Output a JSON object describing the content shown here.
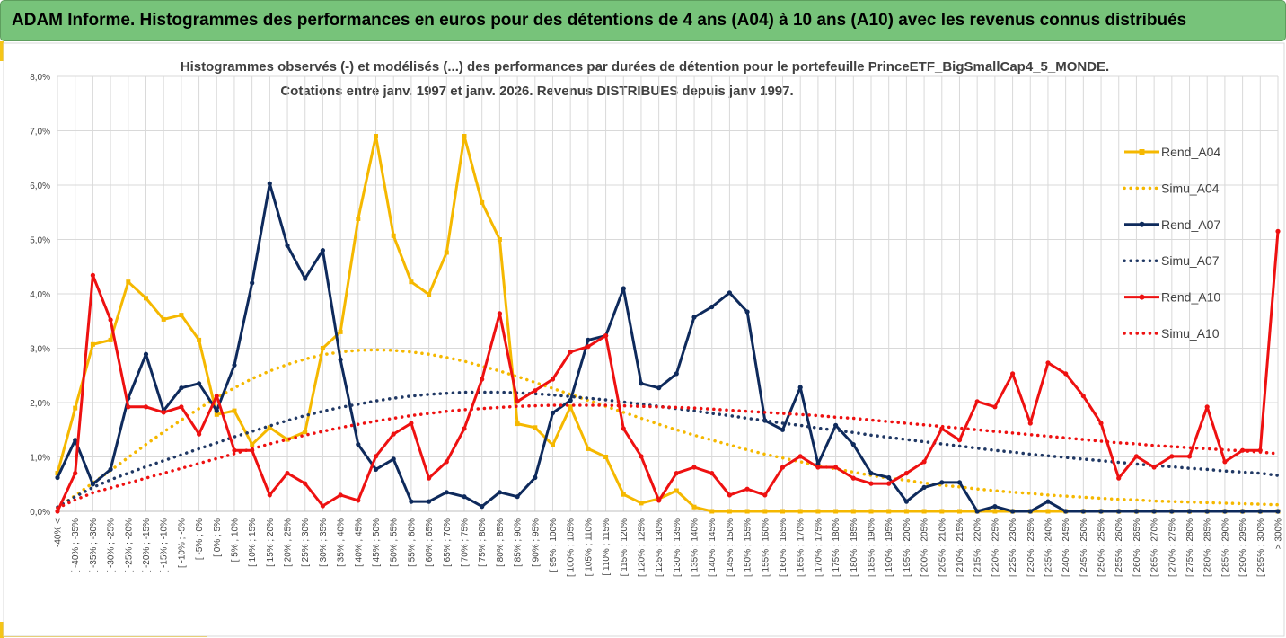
{
  "header": {
    "title": "ADAM Informe. Histogrammes des performances en euros pour des détentions de 4 ans (A04) à 10 ans (A10) avec les revenus connus distribués",
    "background": "#77c37a",
    "accent": "#f5c518"
  },
  "chart_data": {
    "type": "line",
    "title_lines": [
      "Histogrammes observés (-) et modélisés (...) des performances par durées de détention pour le portefeuille PrinceETF_BigSmallCap4_5_MONDE.",
      "Cotations entre janv. 1997 et janv. 2026. Revenus DISTRIBUES depuis janv 1997."
    ],
    "ylim": [
      0,
      8
    ],
    "yticks": [
      "0,0%",
      "1,0%",
      "2,0%",
      "3,0%",
      "4,0%",
      "5,0%",
      "6,0%",
      "7,0%",
      "8,0%"
    ],
    "grid": true,
    "legend_position": "right",
    "categories": [
      "-40% <",
      "[ -40% ; -35%",
      "[ -35% ; -30%",
      "[ -30% ; -25%",
      "[ -25% ; -20%",
      "[ -20% ; -15%",
      "[ -15% ; -10%",
      "[ -10% ; -5%",
      "[ -5% ; 0%",
      "[ 0% ; 5%",
      "[ 5% ; 10%",
      "[ 10% ; 15%",
      "[ 15% ; 20%",
      "[ 20% ; 25%",
      "[ 25% ; 30%",
      "[ 30% ; 35%",
      "[ 35% ; 40%",
      "[ 40% ; 45%",
      "[ 45% ; 50%",
      "[ 50% ; 55%",
      "[ 55% ; 60%",
      "[ 60% ; 65%",
      "[ 65% ; 70%",
      "[ 70% ; 75%",
      "[ 75% ; 80%",
      "[ 80% ; 85%",
      "[ 85% ; 90%",
      "[ 90% ; 95%",
      "[ 95% ; 100%",
      "[ 100% ; 105%",
      "[ 105% ; 110%",
      "[ 110% ; 115%",
      "[ 115% ; 120%",
      "[ 120% ; 125%",
      "[ 125% ; 130%",
      "[ 130% ; 135%",
      "[ 135% ; 140%",
      "[ 140% ; 145%",
      "[ 145% ; 150%",
      "[ 150% ; 155%",
      "[ 155% ; 160%",
      "[ 160% ; 165%",
      "[ 165% ; 170%",
      "[ 170% ; 175%",
      "[ 175% ; 180%",
      "[ 180% ; 185%",
      "[ 185% ; 190%",
      "[ 190% ; 195%",
      "[ 195% ; 200%",
      "[ 200% ; 205%",
      "[ 205% ; 210%",
      "[ 210% ; 215%",
      "[ 215% ; 220%",
      "[ 220% ; 225%",
      "[ 225% ; 230%",
      "[ 230% ; 235%",
      "[ 235% ; 240%",
      "[ 240% ; 245%",
      "[ 245% ; 250%",
      "[ 250% ; 255%",
      "[ 255% ; 260%",
      "[ 260% ; 265%",
      "[ 265% ; 270%",
      "[ 270% ; 275%",
      "[ 275% ; 280%",
      "[ 280% ; 285%",
      "[ 285% ; 290%",
      "[ 290% ; 295%",
      "[ 295% ; 300%",
      "> 300%"
    ],
    "series": [
      {
        "name": "Rend_A04",
        "color": "#f5b800",
        "style": "solid",
        "marker": "square",
        "values": [
          0.7,
          1.9,
          3.07,
          3.15,
          4.22,
          3.92,
          3.53,
          3.61,
          3.15,
          1.78,
          1.85,
          1.23,
          1.54,
          1.32,
          1.46,
          3.0,
          3.3,
          5.38,
          6.9,
          5.07,
          4.22,
          3.99,
          4.76,
          6.9,
          5.68,
          5.0,
          1.61,
          1.54,
          1.22,
          1.92,
          1.15,
          1.0,
          0.31,
          0.15,
          0.23,
          0.38,
          0.08,
          0.0,
          0.0,
          0.0,
          0.0,
          0.0,
          0.0,
          0.0,
          0.0,
          0.0,
          0.0,
          0.0,
          0.0,
          0.0,
          0.0,
          0.0,
          0.0,
          0.0,
          0.0,
          0.0,
          0.0,
          0.0,
          0.0,
          0.0,
          0.0,
          0.0,
          0.0,
          0.0,
          0.0,
          0.0,
          0.0,
          0.0,
          0.0,
          0.0
        ]
      },
      {
        "name": "Simu_A04",
        "color": "#f5b800",
        "style": "dotted",
        "marker": "none",
        "values": [
          0.07,
          0.29,
          0.52,
          0.75,
          0.99,
          1.23,
          1.46,
          1.68,
          1.89,
          2.09,
          2.27,
          2.44,
          2.58,
          2.7,
          2.8,
          2.88,
          2.93,
          2.96,
          2.97,
          2.96,
          2.93,
          2.89,
          2.83,
          2.76,
          2.67,
          2.58,
          2.48,
          2.37,
          2.26,
          2.15,
          2.04,
          1.93,
          1.82,
          1.71,
          1.6,
          1.5,
          1.4,
          1.31,
          1.22,
          1.13,
          1.05,
          0.98,
          0.91,
          0.84,
          0.78,
          0.72,
          0.66,
          0.61,
          0.57,
          0.52,
          0.48,
          0.45,
          0.41,
          0.38,
          0.35,
          0.33,
          0.3,
          0.28,
          0.26,
          0.24,
          0.22,
          0.21,
          0.19,
          0.18,
          0.17,
          0.16,
          0.15,
          0.14,
          0.13,
          0.12
        ]
      },
      {
        "name": "Rend_A07",
        "color": "#0e2a5c",
        "style": "solid",
        "marker": "circle",
        "values": [
          0.62,
          1.31,
          0.5,
          0.77,
          2.08,
          2.89,
          1.85,
          2.27,
          2.35,
          1.85,
          2.69,
          4.2,
          6.03,
          4.89,
          4.28,
          4.8,
          2.79,
          1.23,
          0.77,
          0.96,
          0.18,
          0.18,
          0.35,
          0.27,
          0.09,
          0.35,
          0.27,
          0.62,
          1.81,
          2.04,
          3.15,
          3.23,
          4.1,
          2.35,
          2.27,
          2.53,
          3.57,
          3.76,
          4.02,
          3.67,
          1.67,
          1.5,
          2.28,
          0.87,
          1.58,
          1.23,
          0.7,
          0.62,
          0.18,
          0.44,
          0.53,
          0.53,
          0.0,
          0.09,
          0.0,
          0.0,
          0.18,
          0.0,
          0.0,
          0.0,
          0.0,
          0.0,
          0.0,
          0.0,
          0.0,
          0.0,
          0.0,
          0.0,
          0.0,
          0.0
        ]
      },
      {
        "name": "Simu_A07",
        "color": "#203864",
        "style": "dotted",
        "marker": "none",
        "values": [
          0.08,
          0.27,
          0.44,
          0.58,
          0.7,
          0.82,
          0.93,
          1.04,
          1.15,
          1.26,
          1.37,
          1.47,
          1.57,
          1.67,
          1.76,
          1.84,
          1.91,
          1.97,
          2.03,
          2.08,
          2.12,
          2.15,
          2.17,
          2.19,
          2.19,
          2.19,
          2.18,
          2.16,
          2.14,
          2.11,
          2.08,
          2.05,
          2.01,
          1.97,
          1.93,
          1.89,
          1.85,
          1.8,
          1.76,
          1.71,
          1.67,
          1.62,
          1.58,
          1.53,
          1.49,
          1.45,
          1.4,
          1.36,
          1.32,
          1.28,
          1.24,
          1.2,
          1.16,
          1.12,
          1.09,
          1.05,
          1.02,
          0.99,
          0.96,
          0.93,
          0.9,
          0.87,
          0.84,
          0.82,
          0.79,
          0.77,
          0.74,
          0.72,
          0.7,
          0.66
        ]
      },
      {
        "name": "Rend_A10",
        "color": "#ee1111",
        "style": "solid",
        "marker": "circle",
        "values": [
          0.0,
          0.7,
          4.34,
          3.52,
          1.92,
          1.92,
          1.82,
          1.92,
          1.42,
          2.12,
          1.12,
          1.12,
          0.3,
          0.7,
          0.51,
          0.1,
          0.3,
          0.2,
          1.01,
          1.42,
          1.62,
          0.61,
          0.91,
          1.52,
          2.43,
          3.64,
          2.02,
          2.22,
          2.43,
          2.93,
          3.03,
          3.23,
          1.52,
          1.01,
          0.2,
          0.7,
          0.81,
          0.7,
          0.3,
          0.41,
          0.3,
          0.81,
          1.01,
          0.81,
          0.81,
          0.61,
          0.51,
          0.51,
          0.7,
          0.91,
          1.52,
          1.31,
          2.02,
          1.92,
          2.53,
          1.62,
          2.73,
          2.53,
          2.12,
          1.62,
          0.61,
          1.01,
          0.81,
          1.01,
          1.01,
          1.92,
          0.91,
          1.12,
          1.12,
          5.15
        ]
      },
      {
        "name": "Simu_A10",
        "color": "#ee1111",
        "style": "dotted",
        "marker": "none",
        "values": [
          0.06,
          0.21,
          0.34,
          0.43,
          0.52,
          0.61,
          0.7,
          0.79,
          0.88,
          0.97,
          1.06,
          1.15,
          1.24,
          1.32,
          1.4,
          1.47,
          1.54,
          1.6,
          1.66,
          1.71,
          1.76,
          1.8,
          1.84,
          1.87,
          1.89,
          1.91,
          1.93,
          1.94,
          1.95,
          1.95,
          1.95,
          1.95,
          1.94,
          1.93,
          1.92,
          1.91,
          1.9,
          1.88,
          1.86,
          1.84,
          1.82,
          1.8,
          1.78,
          1.76,
          1.73,
          1.71,
          1.68,
          1.65,
          1.62,
          1.59,
          1.56,
          1.53,
          1.5,
          1.47,
          1.44,
          1.41,
          1.38,
          1.35,
          1.32,
          1.29,
          1.26,
          1.24,
          1.21,
          1.19,
          1.17,
          1.15,
          1.13,
          1.11,
          1.09,
          1.06
        ]
      }
    ]
  }
}
